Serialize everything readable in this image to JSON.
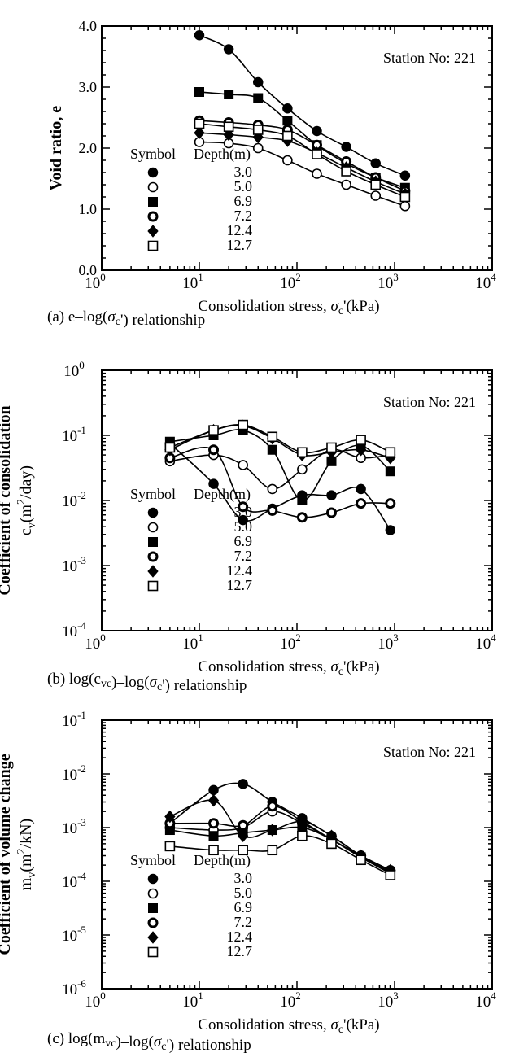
{
  "symbol_header": "Symbol",
  "depth_header": "Depth(m)",
  "legend_depths": [
    "3.0",
    "5.0",
    "6.9",
    "7.2",
    "12.4",
    "12.7"
  ],
  "legend_markers": [
    "filled-circle",
    "open-circle",
    "filled-square",
    "bold-open-circle",
    "filled-diamond",
    "open-square"
  ],
  "chart_data": [
    {
      "type": "line",
      "panel": "a",
      "caption": "(a)  e–log(σc') relationship",
      "annotation": "Station No: 221",
      "ylabel": "Void ratio,  e",
      "xlabel": "Consolidation stress,  σc'(kPa)",
      "x_scale": "log",
      "y_scale": "linear",
      "xlim": [
        1,
        10000
      ],
      "ylim": [
        0,
        4
      ],
      "x_tick_labels": [
        "10^0",
        "10^1",
        "10^2",
        "10^3",
        "10^4"
      ],
      "y_tick_labels": [
        "0.0",
        "1.0",
        "2.0",
        "3.0",
        "4.0"
      ],
      "series": [
        {
          "name": "3.0",
          "marker": "filled-circle",
          "x": [
            10,
            20,
            40,
            80,
            160,
            320,
            640,
            1280
          ],
          "y": [
            3.85,
            3.62,
            3.08,
            2.65,
            2.28,
            2.02,
            1.75,
            1.55
          ]
        },
        {
          "name": "5.0",
          "marker": "open-circle",
          "x": [
            10,
            20,
            40,
            80,
            160,
            320,
            640,
            1280
          ],
          "y": [
            2.1,
            2.08,
            2.0,
            1.8,
            1.58,
            1.4,
            1.22,
            1.05
          ]
        },
        {
          "name": "6.9",
          "marker": "filled-square",
          "x": [
            10,
            20,
            40,
            80,
            160,
            320,
            640,
            1280
          ],
          "y": [
            2.92,
            2.88,
            2.82,
            2.45,
            2.05,
            1.75,
            1.52,
            1.35
          ]
        },
        {
          "name": "7.2",
          "marker": "bold-open-circle",
          "x": [
            10,
            20,
            40,
            80,
            160,
            320,
            640,
            1280
          ],
          "y": [
            2.45,
            2.42,
            2.38,
            2.3,
            2.05,
            1.78,
            1.52,
            1.3
          ]
        },
        {
          "name": "12.4",
          "marker": "filled-diamond",
          "x": [
            10,
            20,
            40,
            80,
            160,
            320,
            640,
            1280
          ],
          "y": [
            2.25,
            2.22,
            2.18,
            2.12,
            1.92,
            1.68,
            1.45,
            1.25
          ]
        },
        {
          "name": "12.7",
          "marker": "open-square",
          "x": [
            10,
            20,
            40,
            80,
            160,
            320,
            640,
            1280
          ],
          "y": [
            2.4,
            2.35,
            2.3,
            2.2,
            1.9,
            1.62,
            1.4,
            1.2
          ]
        }
      ]
    },
    {
      "type": "line",
      "panel": "b",
      "caption": "(b)  log(cvc)–log(σc') relationship",
      "annotation": "Station No: 221",
      "ylabel": "Coefficient of consolidation cv(m2/day)",
      "xlabel": "Consolidation stress,  σc'(kPa)",
      "x_scale": "log",
      "y_scale": "log",
      "xlim": [
        1,
        10000
      ],
      "ylim": [
        0.0001,
        1
      ],
      "x_tick_labels": [
        "10^0",
        "10^1",
        "10^2",
        "10^3",
        "10^4"
      ],
      "y_tick_labels": [
        "10^-4",
        "10^-3",
        "10^-2",
        "10^-1",
        "10^0"
      ],
      "series": [
        {
          "name": "3.0",
          "marker": "filled-circle",
          "x": [
            5,
            14,
            28,
            56,
            113,
            226,
            452,
            905
          ],
          "y": [
            0.075,
            0.018,
            0.005,
            0.0075,
            0.012,
            0.012,
            0.015,
            0.0035
          ]
        },
        {
          "name": "5.0",
          "marker": "open-circle",
          "x": [
            5,
            14,
            28,
            56,
            113,
            226,
            452,
            905
          ],
          "y": [
            0.04,
            0.05,
            0.035,
            0.015,
            0.03,
            0.06,
            0.045,
            0.05
          ]
        },
        {
          "name": "6.9",
          "marker": "filled-square",
          "x": [
            5,
            14,
            28,
            56,
            113,
            226,
            452,
            905
          ],
          "y": [
            0.08,
            0.1,
            0.12,
            0.06,
            0.01,
            0.04,
            0.07,
            0.028
          ]
        },
        {
          "name": "7.2",
          "marker": "bold-open-circle",
          "x": [
            5,
            14,
            28,
            56,
            113,
            226,
            452,
            905
          ],
          "y": [
            0.045,
            0.06,
            0.008,
            0.007,
            0.0055,
            0.0065,
            0.009,
            0.009
          ]
        },
        {
          "name": "12.4",
          "marker": "filled-diamond",
          "x": [
            5,
            14,
            28,
            56,
            113,
            226,
            452,
            905
          ],
          "y": [
            0.06,
            0.12,
            0.14,
            0.09,
            0.05,
            0.055,
            0.06,
            0.045
          ]
        },
        {
          "name": "12.7",
          "marker": "open-square",
          "x": [
            5,
            14,
            28,
            56,
            113,
            226,
            452,
            905
          ],
          "y": [
            0.065,
            0.12,
            0.145,
            0.095,
            0.055,
            0.065,
            0.085,
            0.055
          ]
        }
      ]
    },
    {
      "type": "line",
      "panel": "c",
      "caption": "(c)  log(mvc)–log(σc') relationship",
      "annotation": "Station No: 221",
      "ylabel": "Coefficient of volume change mv(m2/kN)",
      "xlabel": "Consolidation stress,  σc'(kPa)",
      "x_scale": "log",
      "y_scale": "log",
      "xlim": [
        1,
        10000
      ],
      "ylim": [
        1e-06,
        0.1
      ],
      "x_tick_labels": [
        "10^0",
        "10^1",
        "10^2",
        "10^3",
        "10^4"
      ],
      "y_tick_labels": [
        "10^-6",
        "10^-5",
        "10^-4",
        "10^-3",
        "10^-2",
        "10^-1"
      ],
      "series": [
        {
          "name": "3.0",
          "marker": "filled-circle",
          "x": [
            5,
            14,
            28,
            56,
            113,
            226,
            452,
            905
          ],
          "y": [
            0.0012,
            0.005,
            0.0065,
            0.003,
            0.0015,
            0.0007,
            0.0003,
            0.00016
          ]
        },
        {
          "name": "5.0",
          "marker": "open-circle",
          "x": [
            5,
            14,
            28,
            56,
            113,
            226,
            452,
            905
          ],
          "y": [
            0.001,
            0.0009,
            0.001,
            0.002,
            0.0012,
            0.0006,
            0.00028,
            0.00015
          ]
        },
        {
          "name": "6.9",
          "marker": "filled-square",
          "x": [
            5,
            14,
            28,
            56,
            113,
            226,
            452,
            905
          ],
          "y": [
            0.0009,
            0.0007,
            0.0008,
            0.0009,
            0.001,
            0.0006,
            0.00028,
            0.00014
          ]
        },
        {
          "name": "7.2",
          "marker": "bold-open-circle",
          "x": [
            5,
            14,
            28,
            56,
            113,
            226,
            452,
            905
          ],
          "y": [
            0.0012,
            0.0012,
            0.0011,
            0.0025,
            0.0013,
            0.0006,
            0.0003,
            0.00016
          ]
        },
        {
          "name": "12.4",
          "marker": "filled-diamond",
          "x": [
            5,
            14,
            28,
            56,
            113,
            226,
            452,
            905
          ],
          "y": [
            0.0016,
            0.0032,
            0.0007,
            0.0009,
            0.0013,
            0.0007,
            0.0003,
            0.00016
          ]
        },
        {
          "name": "12.7",
          "marker": "open-square",
          "x": [
            5,
            14,
            28,
            56,
            113,
            226,
            452,
            905
          ],
          "y": [
            0.00045,
            0.00038,
            0.00038,
            0.00038,
            0.0007,
            0.0005,
            0.00025,
            0.00013
          ]
        }
      ]
    }
  ]
}
